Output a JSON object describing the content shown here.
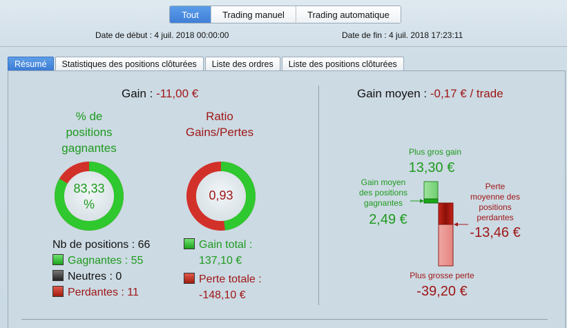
{
  "filters": {
    "all": "Tout",
    "manual": "Trading manuel",
    "auto": "Trading automatique"
  },
  "dates": {
    "start": "Date de début : 4 juil. 2018 00:00:00",
    "end": "Date de fin : 4 juil. 2018 17:23:11"
  },
  "tabs": [
    "Résumé",
    "Statistiques des positions clôturées",
    "Liste des ordres",
    "Liste des positions clôturées"
  ],
  "gain": {
    "label": "Gain : ",
    "value": "-11,00 €"
  },
  "win_pct": {
    "title_l1": "% de",
    "title_l2": "positions",
    "title_l3": "gagnantes",
    "value_l1": "83,33",
    "value_l2": "%",
    "ratio": 0.8333
  },
  "ratio": {
    "title_l1": "Ratio",
    "title_l2": "Gains/Pertes",
    "value": "0,93",
    "ratio": 0.4804
  },
  "positions": {
    "total": "Nb de positions : 66",
    "winning": "Gagnantes : 55",
    "neutral": "Neutres : 0",
    "losing": "Perdantes : 11"
  },
  "totals": {
    "gain_label": "Gain total :",
    "gain_value": "137,10 €",
    "loss_label": "Perte totale :",
    "loss_value": "-148,10 €"
  },
  "avg_gain": {
    "label": "Gain moyen : ",
    "value": "-0,17 € / trade"
  },
  "chart": {
    "max_gain_label": "Plus gros gain",
    "max_gain": "13,30 €",
    "avg_win_label_l1": "Gain moyen",
    "avg_win_label_l2": "des positions",
    "avg_win_label_l3": "gagnantes",
    "avg_win": "2,49 €",
    "avg_loss_label_l1": "Perte",
    "avg_loss_label_l2": "moyenne des",
    "avg_loss_label_l3": "positions",
    "avg_loss_label_l4": "perdantes",
    "avg_loss": "-13,46 €",
    "max_loss_label": "Plus grosse perte",
    "max_loss": "-39,20 €"
  },
  "colors": {
    "accent": "#3f7fd8",
    "green": "#1e9a1e",
    "red": "#a01818"
  }
}
